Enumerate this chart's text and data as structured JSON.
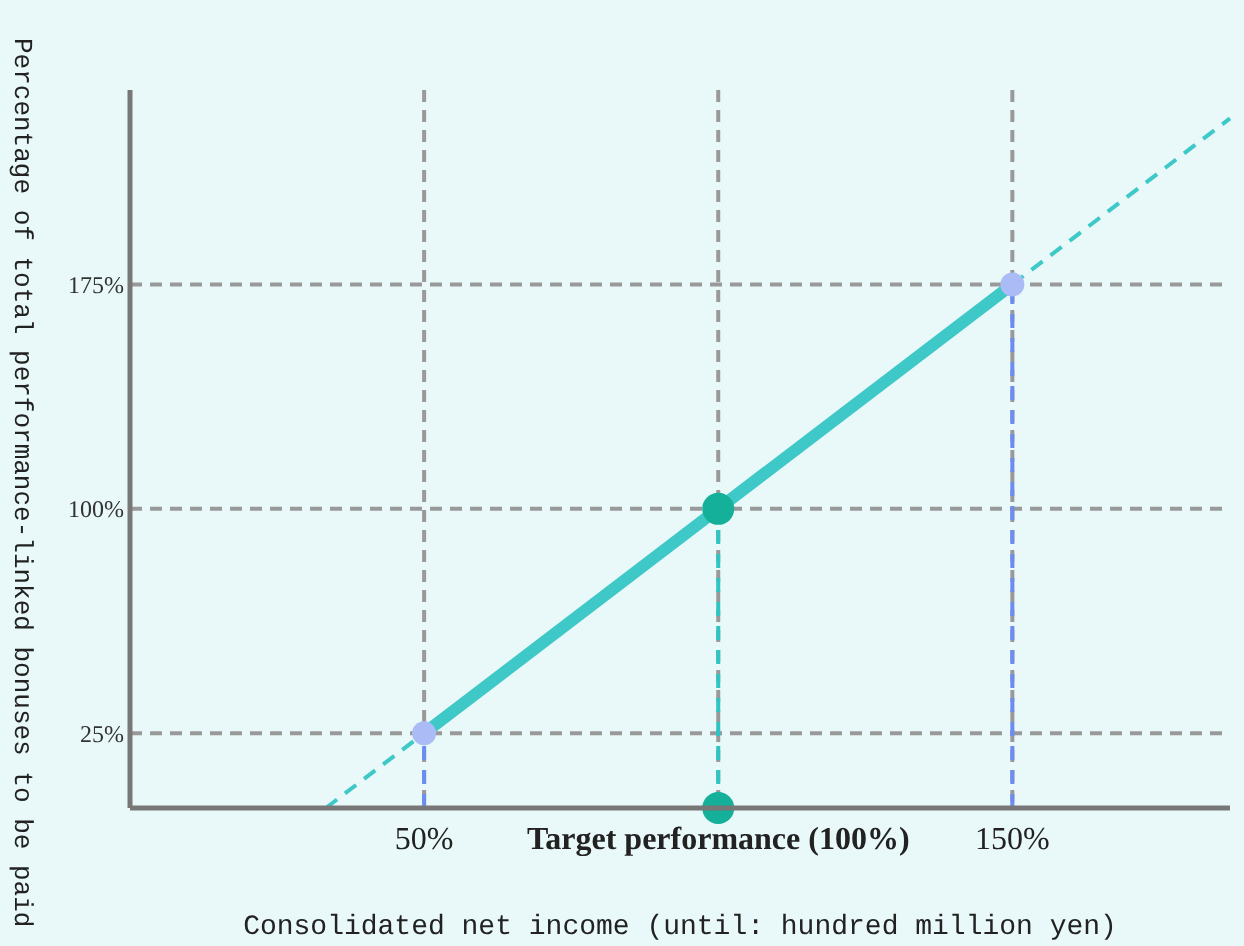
{
  "chart_data": {
    "type": "line",
    "xlabel": "Consolidated net income (until: hundred million yen)",
    "ylabel": "Percentage of total performance-linked bonuses to be paid",
    "xlim": [
      0,
      187
    ],
    "ylim": [
      0,
      240
    ],
    "xticks": [
      {
        "value": 50,
        "label": "50%"
      },
      {
        "value": 100,
        "label": "Target performance (100%)"
      },
      {
        "value": 150,
        "label": "150%"
      }
    ],
    "yticks": [
      {
        "value": 25,
        "label": "25%"
      },
      {
        "value": 100,
        "label": "100%"
      },
      {
        "value": 175,
        "label": "175%"
      }
    ],
    "grid": true,
    "series": [
      {
        "x": [
          50,
          50
        ],
        "values": [
          0,
          25
        ],
        "color": "#6b8cf0",
        "line_style": "dashed",
        "marker": "none"
      },
      {
        "x": [
          150,
          150
        ],
        "values": [
          0,
          175
        ],
        "color": "#6b8cf0",
        "line_style": "dashed",
        "marker": "none"
      },
      {
        "x": [
          100,
          100
        ],
        "values": [
          0,
          100
        ],
        "color": "#2ec4c4",
        "line_style": "dashed",
        "marker": "none"
      },
      {
        "x": [
          33.3,
          50
        ],
        "values": [
          0,
          25
        ],
        "color": "#3ec8c8",
        "line_style": "dashed",
        "marker": "none"
      },
      {
        "x": [
          150,
          187
        ],
        "values": [
          175,
          230.5
        ],
        "color": "#3ec8c8",
        "line_style": "dashed",
        "marker": "none"
      },
      {
        "x": [
          50,
          100,
          150
        ],
        "values": [
          25,
          100,
          175
        ],
        "color": "#3ec8c8",
        "line_style": "solid",
        "marker": "none"
      },
      {
        "type": "scatter",
        "x": [
          50,
          150
        ],
        "values": [
          25,
          175
        ],
        "color": "#aabbf5",
        "marker": "circle"
      },
      {
        "type": "scatter",
        "x": [
          100,
          100
        ],
        "values": [
          100,
          0
        ],
        "color": "#14b09a",
        "marker": "circle"
      }
    ]
  }
}
